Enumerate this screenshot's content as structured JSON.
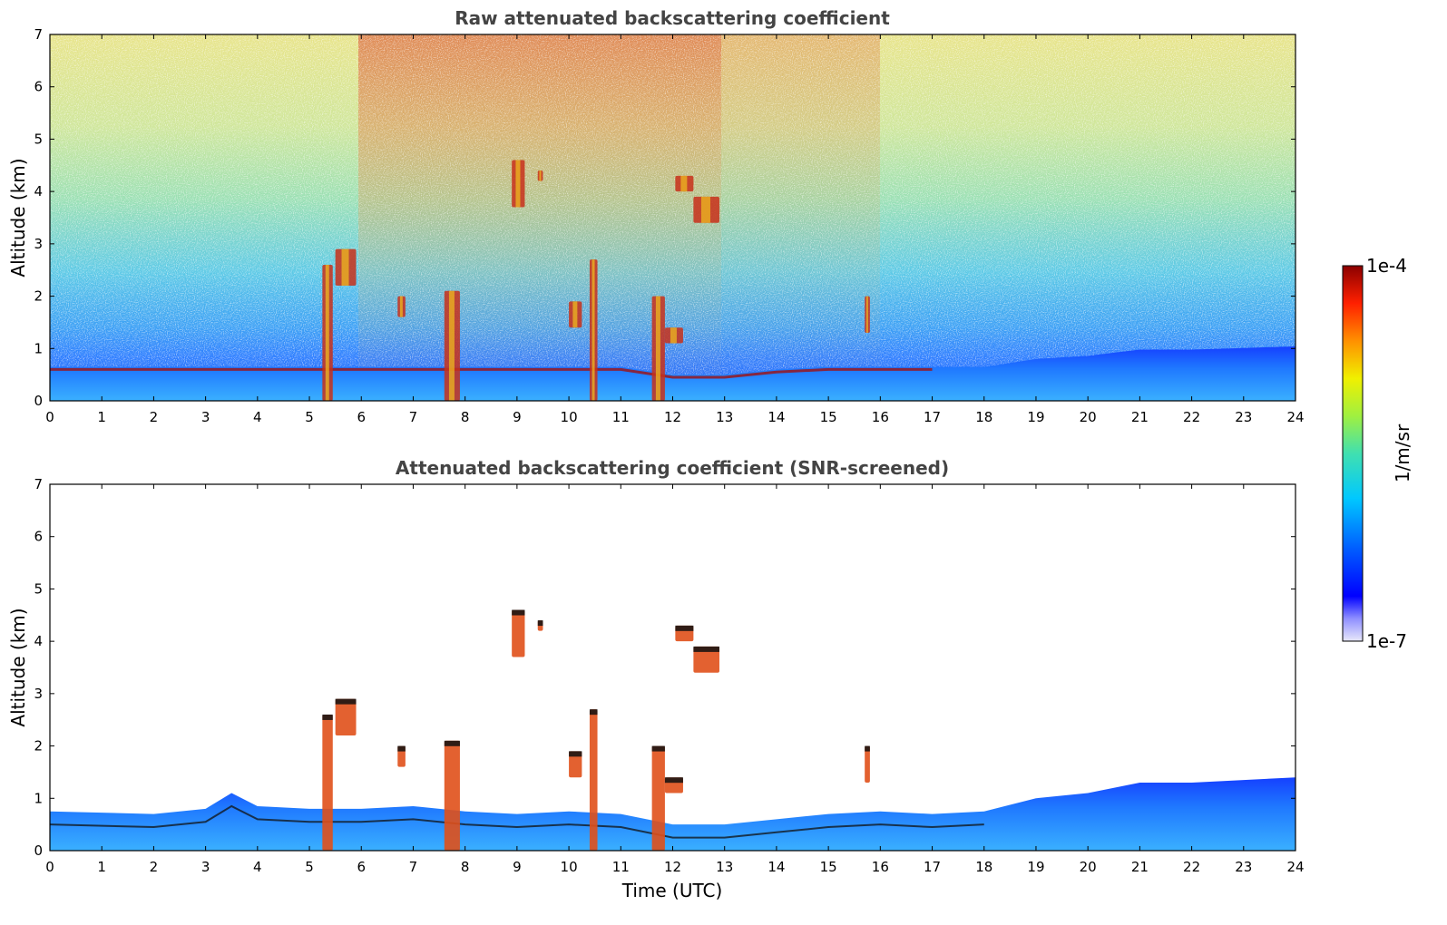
{
  "chart_data": [
    {
      "type": "heatmap",
      "title": "Raw attenuated backscattering coefficient",
      "xlabel": "",
      "ylabel": "Altitude (km)",
      "xlim": [
        0,
        24
      ],
      "ylim": [
        0,
        7
      ],
      "x_ticks": [
        0,
        1,
        2,
        3,
        4,
        5,
        6,
        7,
        8,
        9,
        10,
        11,
        12,
        13,
        14,
        15,
        16,
        17,
        18,
        19,
        20,
        21,
        22,
        23,
        24
      ],
      "y_ticks": [
        0,
        1,
        2,
        3,
        4,
        5,
        6,
        7
      ],
      "cloud_features": [
        {
          "t_start": 5.25,
          "t_end": 5.45,
          "alt_base": 0.0,
          "alt_top": 2.6
        },
        {
          "t_start": 5.5,
          "t_end": 5.9,
          "alt_base": 2.2,
          "alt_top": 2.9
        },
        {
          "t_start": 6.7,
          "t_end": 6.85,
          "alt_base": 1.6,
          "alt_top": 2.0
        },
        {
          "t_start": 7.6,
          "t_end": 7.9,
          "alt_base": 0.0,
          "alt_top": 2.1
        },
        {
          "t_start": 8.9,
          "t_end": 9.15,
          "alt_base": 3.7,
          "alt_top": 4.6
        },
        {
          "t_start": 9.4,
          "t_end": 9.5,
          "alt_base": 4.2,
          "alt_top": 4.4
        },
        {
          "t_start": 10.0,
          "t_end": 10.25,
          "alt_base": 1.4,
          "alt_top": 1.9
        },
        {
          "t_start": 10.4,
          "t_end": 10.55,
          "alt_base": 0.0,
          "alt_top": 2.7
        },
        {
          "t_start": 11.6,
          "t_end": 11.85,
          "alt_base": 0.0,
          "alt_top": 2.0
        },
        {
          "t_start": 11.85,
          "t_end": 12.2,
          "alt_base": 1.1,
          "alt_top": 1.4
        },
        {
          "t_start": 12.05,
          "t_end": 12.4,
          "alt_base": 4.0,
          "alt_top": 4.3
        },
        {
          "t_start": 12.4,
          "t_end": 12.9,
          "alt_base": 3.4,
          "alt_top": 3.9
        },
        {
          "t_start": 15.7,
          "t_end": 15.8,
          "alt_base": 1.3,
          "alt_top": 2.0
        }
      ]
    },
    {
      "type": "heatmap",
      "title": "Attenuated backscattering coefficient (SNR-screened)",
      "xlabel": "Time (UTC)",
      "ylabel": "Altitude (km)",
      "xlim": [
        0,
        24
      ],
      "ylim": [
        0,
        7
      ],
      "x_ticks": [
        0,
        1,
        2,
        3,
        4,
        5,
        6,
        7,
        8,
        9,
        10,
        11,
        12,
        13,
        14,
        15,
        16,
        17,
        18,
        19,
        20,
        21,
        22,
        23,
        24
      ],
      "y_ticks": [
        0,
        1,
        2,
        3,
        4,
        5,
        6,
        7
      ],
      "boundary_layer_top_km": [
        [
          0,
          0.75
        ],
        [
          2,
          0.7
        ],
        [
          3,
          0.8
        ],
        [
          3.5,
          1.1
        ],
        [
          4,
          0.85
        ],
        [
          5,
          0.8
        ],
        [
          6,
          0.8
        ],
        [
          7,
          0.85
        ],
        [
          8,
          0.75
        ],
        [
          9,
          0.7
        ],
        [
          10,
          0.75
        ],
        [
          11,
          0.7
        ],
        [
          12,
          0.5
        ],
        [
          13,
          0.5
        ],
        [
          14,
          0.6
        ],
        [
          15,
          0.7
        ],
        [
          16,
          0.75
        ],
        [
          17,
          0.7
        ],
        [
          18,
          0.75
        ],
        [
          19,
          1.0
        ],
        [
          20,
          1.1
        ],
        [
          21,
          1.3
        ],
        [
          22,
          1.3
        ],
        [
          23,
          1.35
        ],
        [
          24,
          1.4
        ]
      ]
    }
  ],
  "colorbar": {
    "max_label": "1e-4",
    "min_label": "1e-7",
    "unit_label": "1/m/sr",
    "scale": "log",
    "range": [
      1e-07,
      0.0001
    ]
  }
}
